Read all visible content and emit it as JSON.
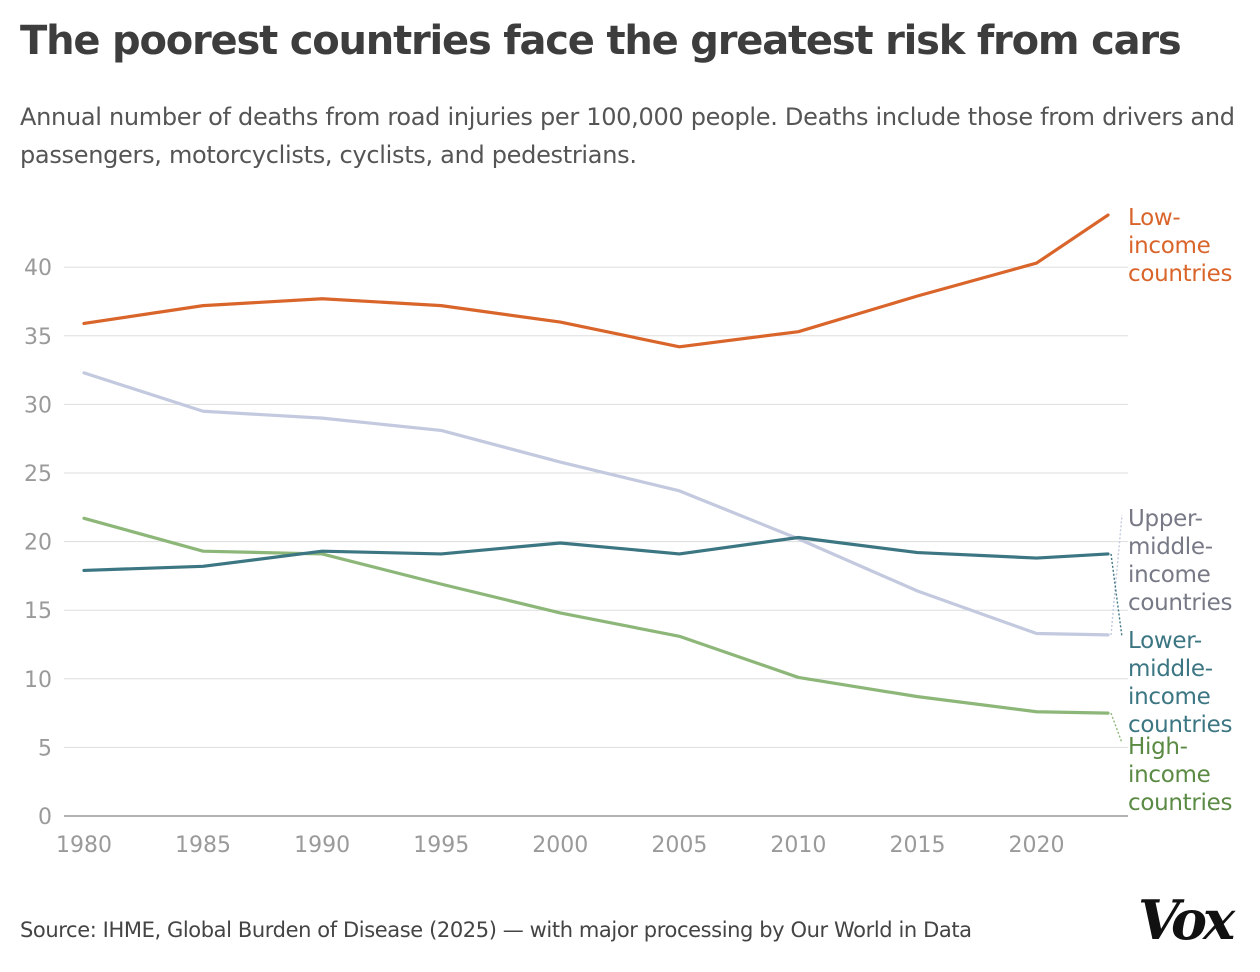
{
  "chart_data": {
    "type": "line",
    "title": "The poorest countries face the greatest risk from cars",
    "subtitle": "Annual number of deaths from road injuries per 100,000 people. Deaths include those from drivers and passengers, motorcyclists, cyclists, and pedestrians.",
    "xlabel": "",
    "ylabel": "",
    "x": [
      1980,
      1985,
      1990,
      1995,
      2000,
      2005,
      2010,
      2015,
      2020,
      2023
    ],
    "xlim": [
      1980,
      2023
    ],
    "ylim": [
      0,
      45
    ],
    "xticks": [
      "1980",
      "1985",
      "1990",
      "1995",
      "2000",
      "2005",
      "2010",
      "2015",
      "2020"
    ],
    "yticks": [
      "0",
      "5",
      "10",
      "15",
      "20",
      "25",
      "30",
      "35",
      "40"
    ],
    "grid": true,
    "legend": "direct labels at right end of lines",
    "series": [
      {
        "name": "Low-income countries",
        "label_lines": [
          "Low-",
          "income",
          "countries"
        ],
        "color": "#d9652b",
        "label_color": "#d9652b",
        "values": [
          35.9,
          37.2,
          37.7,
          37.2,
          36.0,
          34.2,
          35.3,
          37.9,
          40.3,
          43.8
        ]
      },
      {
        "name": "Upper-middle-income countries",
        "label_lines": [
          "Upper-",
          "middle-",
          "income",
          "countries"
        ],
        "color": "#c3c9de",
        "label_color": "#777a86",
        "values": [
          32.3,
          29.5,
          29.0,
          28.1,
          25.8,
          23.7,
          20.2,
          16.4,
          13.3,
          13.2
        ]
      },
      {
        "name": "Lower-middle-income countries",
        "label_lines": [
          "Lower-",
          "middle-",
          "income",
          "countries"
        ],
        "color": "#3c7683",
        "label_color": "#3c7683",
        "values": [
          17.9,
          18.2,
          19.3,
          19.1,
          19.9,
          19.1,
          20.3,
          19.2,
          18.8,
          19.1
        ]
      },
      {
        "name": "High-income countries",
        "label_lines": [
          "High-",
          "income",
          "countries"
        ],
        "color": "#8db679",
        "label_color": "#5b8a44",
        "values": [
          21.7,
          19.3,
          19.1,
          16.9,
          14.8,
          13.1,
          10.1,
          8.7,
          7.6,
          7.5
        ]
      }
    ]
  },
  "source": "Source: IHME, Global Burden of Disease (2025) — with major processing by Our World in Data",
  "logo_text": "Vox"
}
